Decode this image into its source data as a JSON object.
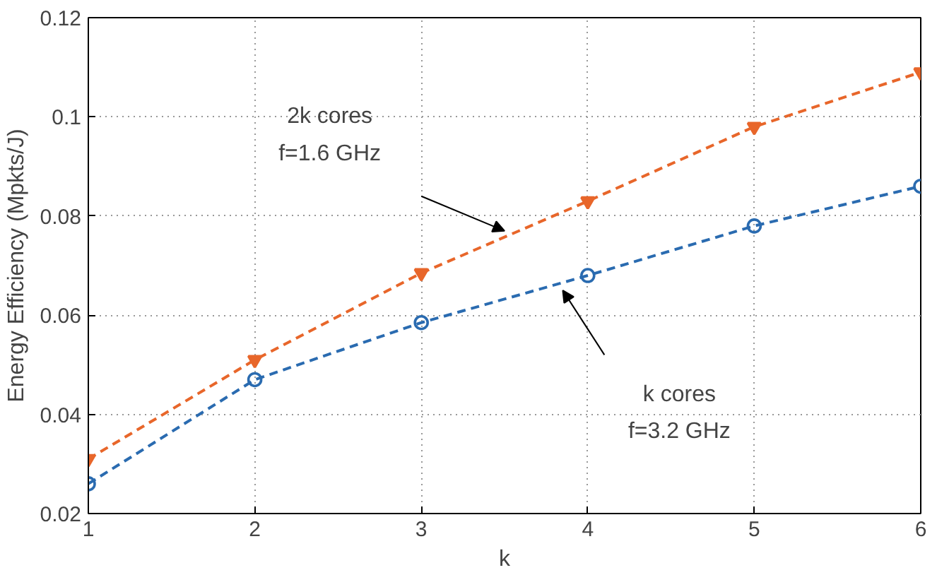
{
  "chart_data": {
    "type": "line",
    "xlabel": "k",
    "ylabel": "Energy Efficiency (Mpkts/J)",
    "x": [
      1,
      2,
      3,
      4,
      5,
      6
    ],
    "series": [
      {
        "color": "#e8662a",
        "values": [
          0.031,
          0.051,
          0.0685,
          0.083,
          0.098,
          0.109
        ],
        "marker": "triangle"
      },
      {
        "color": "#2a6bb0",
        "values": [
          0.026,
          0.047,
          0.0585,
          0.068,
          0.078,
          0.086
        ],
        "marker": "circle"
      }
    ],
    "xlim": [
      1,
      6
    ],
    "ylim": [
      0.02,
      0.12
    ],
    "xticks": [
      1,
      2,
      3,
      4,
      5,
      6
    ],
    "yticks": [
      {
        "value": 0.02,
        "label": "0.02"
      },
      {
        "value": 0.04,
        "label": "0.04"
      },
      {
        "value": 0.06,
        "label": "0.06"
      },
      {
        "value": 0.08,
        "label": "0.08"
      },
      {
        "value": 0.1,
        "label": "0.1"
      },
      {
        "value": 0.12,
        "label": "0.12"
      }
    ],
    "grid": true,
    "line_style": "dashed",
    "annotations": [
      "2k cores\nf=1.6 GHz",
      "k cores\nf=3.2 GHz"
    ]
  }
}
